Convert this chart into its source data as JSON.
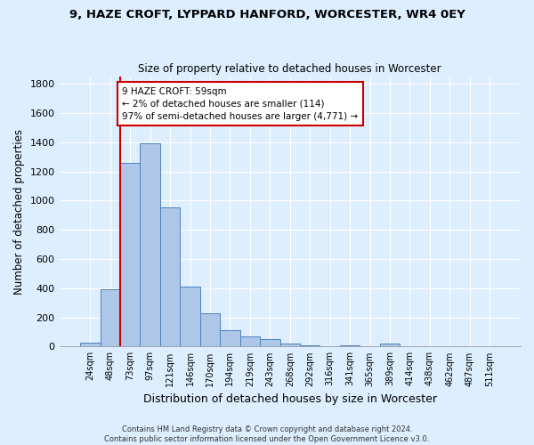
{
  "title1": "9, HAZE CROFT, LYPPARD HANFORD, WORCESTER, WR4 0EY",
  "title2": "Size of property relative to detached houses in Worcester",
  "xlabel": "Distribution of detached houses by size in Worcester",
  "ylabel": "Number of detached properties",
  "bar_labels": [
    "24sqm",
    "48sqm",
    "73sqm",
    "97sqm",
    "121sqm",
    "146sqm",
    "170sqm",
    "194sqm",
    "219sqm",
    "243sqm",
    "268sqm",
    "292sqm",
    "316sqm",
    "341sqm",
    "365sqm",
    "389sqm",
    "414sqm",
    "438sqm",
    "462sqm",
    "487sqm",
    "511sqm"
  ],
  "bar_values": [
    25,
    390,
    1260,
    1390,
    955,
    410,
    228,
    115,
    67,
    50,
    18,
    8,
    5,
    10,
    5,
    20,
    0,
    0,
    0,
    0,
    0
  ],
  "bar_color": "#aec6e8",
  "bar_edge_color": "#4f81bd",
  "background_color": "#ddeeff",
  "grid_color": "#ffffff",
  "property_line_color": "#cc0000",
  "annotation_text": "9 HAZE CROFT: 59sqm\n← 2% of detached houses are smaller (114)\n97% of semi-detached houses are larger (4,771) →",
  "annotation_box_color": "#ffffff",
  "annotation_box_edge": "#cc0000",
  "ylim": [
    0,
    1850
  ],
  "footnote": "Contains HM Land Registry data © Crown copyright and database right 2024.\nContains public sector information licensed under the Open Government Licence v3.0.",
  "fig_bg": "#ddeeff"
}
